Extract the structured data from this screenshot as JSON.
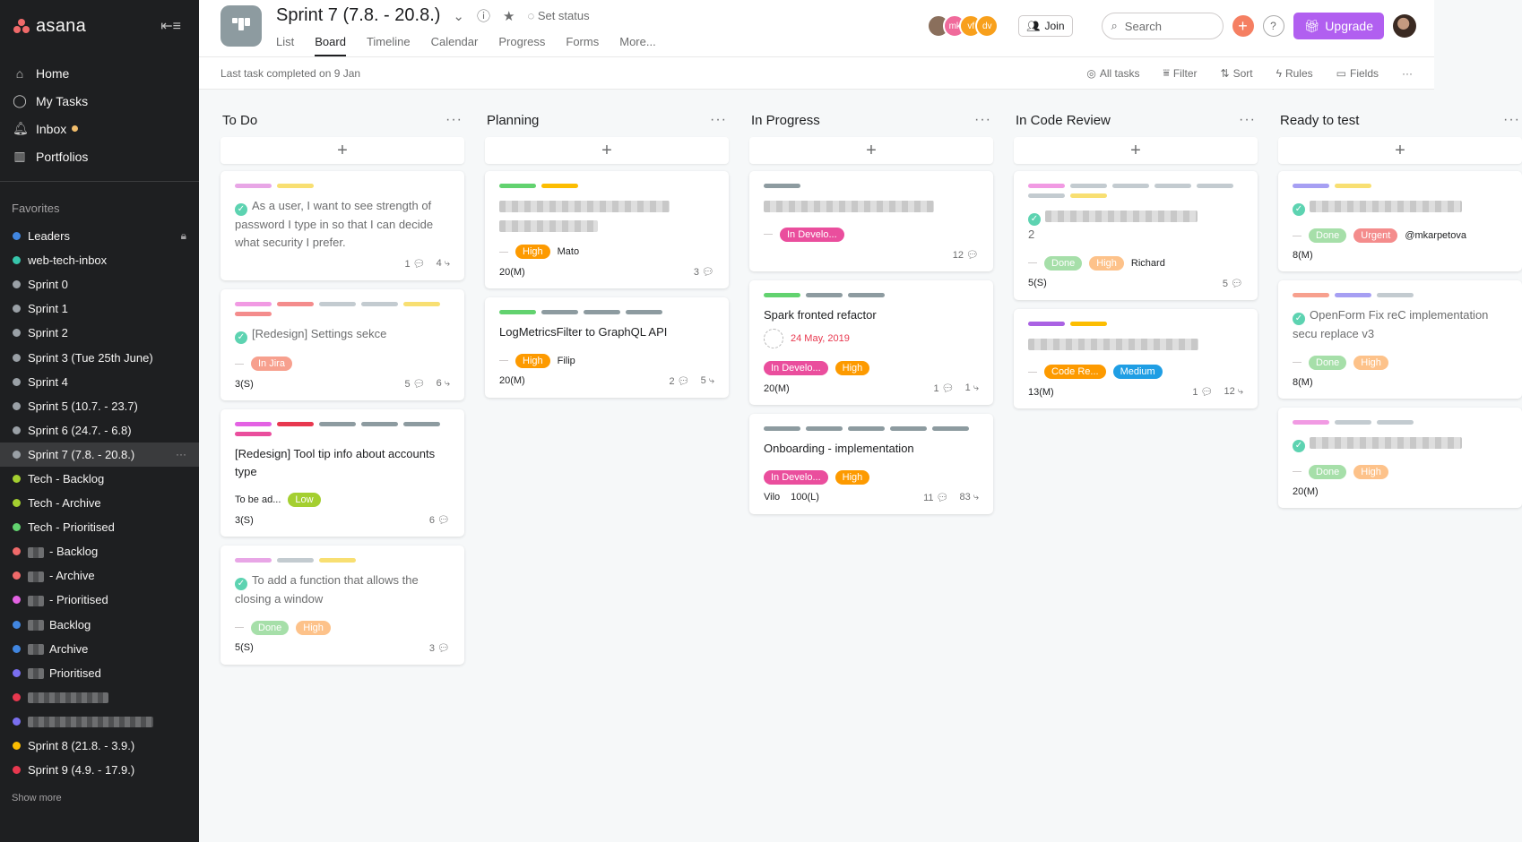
{
  "sidebar": {
    "logo": "asana",
    "nav": [
      {
        "label": "Home",
        "icon": "home-icon"
      },
      {
        "label": "My Tasks",
        "icon": "check-circle-icon"
      },
      {
        "label": "Inbox",
        "icon": "bell-icon"
      },
      {
        "label": "Portfolios",
        "icon": "bar-chart-icon"
      }
    ],
    "favorites_title": "Favorites",
    "favorites": [
      {
        "label": "Leaders",
        "color": "#4186e0",
        "locked": true
      },
      {
        "label": "web-tech-inbox",
        "color": "#37c5ab"
      },
      {
        "label": "Sprint 0",
        "color": "#9aa0a6"
      },
      {
        "label": "Sprint 1",
        "color": "#9aa0a6"
      },
      {
        "label": "Sprint 2",
        "color": "#9aa0a6"
      },
      {
        "label": "Sprint 3 (Tue 25th June)",
        "color": "#9aa0a6"
      },
      {
        "label": "Sprint 4",
        "color": "#9aa0a6"
      },
      {
        "label": "Sprint 5 (10.7. - 23.7)",
        "color": "#9aa0a6"
      },
      {
        "label": "Sprint 6 (24.7. - 6.8)",
        "color": "#9aa0a6"
      },
      {
        "label": "Sprint 7 (7.8. - 20.8.)",
        "color": "#9aa0a6",
        "active": true
      },
      {
        "label": "Tech - Backlog",
        "color": "#a4cf30"
      },
      {
        "label": "Tech - Archive",
        "color": "#a4cf30"
      },
      {
        "label": "Tech - Prioritised",
        "color": "#62d26f"
      },
      {
        "label": "- Backlog",
        "color": "#f06a6a",
        "blurred": true
      },
      {
        "label": "- Archive",
        "color": "#f06a6a",
        "blurred": true
      },
      {
        "label": "- Prioritised",
        "color": "#e362e3",
        "blurred": true
      },
      {
        "label": "Backlog",
        "color": "#4186e0",
        "blurred": true
      },
      {
        "label": "Archive",
        "color": "#4186e0",
        "blurred": true
      },
      {
        "label": "Prioritised",
        "color": "#7a6ff0",
        "blurred": true
      },
      {
        "label": "",
        "color": "#e8384f",
        "blurred_only": true
      },
      {
        "label": "",
        "color": "#7a6ff0",
        "blurred_only": true
      },
      {
        "label": "Sprint 8 (21.8. - 3.9.)",
        "color": "#fcbd01"
      },
      {
        "label": "Sprint 9 (4.9. - 17.9.)",
        "color": "#e8384f"
      }
    ],
    "show_more": "Show more"
  },
  "header": {
    "title": "Sprint 7 (7.8. - 20.8.)",
    "set_status": "Set status",
    "tabs": [
      "List",
      "Board",
      "Timeline",
      "Calendar",
      "Progress",
      "Forms",
      "More..."
    ],
    "active_tab": "Board",
    "avatars": [
      {
        "text": "",
        "color": "#8a6f5c"
      },
      {
        "text": "mk",
        "color": "#f06a9b"
      },
      {
        "text": "vf",
        "color": "#f8a01c"
      },
      {
        "text": "dv",
        "color": "#f8a01c"
      }
    ],
    "join": "Join",
    "search_placeholder": "Search",
    "upgrade": "Upgrade"
  },
  "subheader": {
    "status": "Last task completed on 9 Jan",
    "tools": [
      "All tasks",
      "Filter",
      "Sort",
      "Rules",
      "Fields"
    ]
  },
  "board": {
    "columns": [
      {
        "name": "To Do",
        "cards": [
          {
            "labels": [
              "#e8a6e6",
              "#f8df72"
            ],
            "done": true,
            "title": "As a user, I want to see strength of password I type in so that I can decide what security I prefer.",
            "meta": [
              "",
              "1",
              "4"
            ]
          },
          {
            "labels": [
              "#f19ae3",
              "#f48c8c",
              "#c3cbd0",
              "#c3cbd0",
              "#f8df72",
              "#f48c8c"
            ],
            "done": true,
            "title": "[Redesign] Settings sekce",
            "tags": [
              {
                "text": "In Jira",
                "bg": "#f7a08e",
                "fg": "#fff"
              }
            ],
            "meta": [
              "3(S)",
              "5",
              "6"
            ]
          },
          {
            "labels": [
              "#e362e3",
              "#e8384f",
              "#8d9ba0",
              "#8d9ba0",
              "#8d9ba0",
              "#ea4e9d"
            ],
            "done": false,
            "title": "[Redesign] Tool tip info about accounts type",
            "assignee": "To be ad...",
            "tags": [
              {
                "text": "Low",
                "bg": "#a4cf30",
                "fg": "#fff"
              }
            ],
            "meta": [
              "3(S)",
              "6",
              ""
            ]
          },
          {
            "labels": [
              "#e8a6e6",
              "#c3cbd0",
              "#f8df72"
            ],
            "done": true,
            "title": "To add a function that allows the closing a window",
            "tags": [
              {
                "text": "Done",
                "bg": "#a6dfa9",
                "fg": "#fff"
              },
              {
                "text": "High",
                "bg": "#fdc28a",
                "fg": "#fff"
              }
            ],
            "meta": [
              "5(S)",
              "3",
              ""
            ]
          }
        ]
      },
      {
        "name": "Planning",
        "cards": [
          {
            "labels": [
              "#62d26f",
              "#fcbd01"
            ],
            "blurred_title": true,
            "tags": [
              {
                "text": "High",
                "bg": "#fd9a00",
                "fg": "#fff"
              }
            ],
            "assignee": "Mato",
            "meta": [
              "20(M)",
              "3",
              ""
            ]
          },
          {
            "labels": [
              "#62d26f",
              "#8d9ba0",
              "#8d9ba0",
              "#8d9ba0"
            ],
            "title": "LogMetricsFilter to GraphQL API",
            "tags": [
              {
                "text": "High",
                "bg": "#fd9a00",
                "fg": "#fff"
              }
            ],
            "assignee": "Filip",
            "meta": [
              "20(M)",
              "2",
              "5"
            ]
          }
        ]
      },
      {
        "name": "In Progress",
        "cards": [
          {
            "labels": [
              "#8d9ba0"
            ],
            "blurred_title": true,
            "tags": [
              {
                "text": "In Develo...",
                "bg": "#ea4e9d",
                "fg": "#fff"
              }
            ],
            "meta": [
              "",
              "12",
              ""
            ]
          },
          {
            "labels": [
              "#62d26f",
              "#8d9ba0",
              "#8d9ba0"
            ],
            "title": "Spark fronted refactor",
            "due": "24 May, 2019",
            "tags": [
              {
                "text": "In Develo...",
                "bg": "#ea4e9d",
                "fg": "#fff"
              },
              {
                "text": "High",
                "bg": "#fd9a00",
                "fg": "#fff"
              }
            ],
            "meta": [
              "20(M)",
              "1",
              "1"
            ]
          },
          {
            "labels": [
              "#8d9ba0",
              "#8d9ba0",
              "#8d9ba0",
              "#8d9ba0",
              "#8d9ba0"
            ],
            "title": "Onboarding - implementation",
            "tags": [
              {
                "text": "In Develo...",
                "bg": "#ea4e9d",
                "fg": "#fff"
              },
              {
                "text": "High",
                "bg": "#fd9a00",
                "fg": "#fff"
              }
            ],
            "assignee": "Vilo",
            "meta": [
              "100(L)",
              "11",
              "83"
            ]
          }
        ]
      },
      {
        "name": "In Code Review",
        "cards": [
          {
            "labels": [
              "#f19ae3",
              "#c3cbd0",
              "#c3cbd0",
              "#c3cbd0",
              "#c3cbd0",
              "#c3cbd0",
              "#f8df72"
            ],
            "done": true,
            "blurred_title": true,
            "subtitle": "2",
            "tags": [
              {
                "text": "Done",
                "bg": "#a6dfa9",
                "fg": "#fff"
              },
              {
                "text": "High",
                "bg": "#fdc28a",
                "fg": "#fff"
              }
            ],
            "assignee": "Richard",
            "meta": [
              "5(S)",
              "5",
              ""
            ]
          },
          {
            "labels": [
              "#aa62e3",
              "#fcbd01"
            ],
            "blurred_title": true,
            "tags": [
              {
                "text": "Code Re...",
                "bg": "#fd9a00",
                "fg": "#fff"
              },
              {
                "text": "Medium",
                "bg": "#1f9ee4",
                "fg": "#fff"
              }
            ],
            "meta": [
              "13(M)",
              "1",
              "12"
            ]
          }
        ]
      },
      {
        "name": "Ready to test",
        "cards": [
          {
            "labels": [
              "#a69ff3",
              "#f8df72"
            ],
            "done": true,
            "blurred_title": true,
            "tags": [
              {
                "text": "Done",
                "bg": "#a6dfa9",
                "fg": "#fff"
              },
              {
                "text": "Urgent",
                "bg": "#f48c8c",
                "fg": "#fff"
              }
            ],
            "assignee": "@mkarpetova",
            "meta": [
              "8(M)",
              "",
              ""
            ]
          },
          {
            "labels": [
              "#f7a08e",
              "#a69ff3",
              "#c3cbd0"
            ],
            "done": true,
            "title": "OpenForm Fix reC implementation secu replace v3",
            "tags": [
              {
                "text": "Done",
                "bg": "#a6dfa9",
                "fg": "#fff"
              },
              {
                "text": "High",
                "bg": "#fdc28a",
                "fg": "#fff"
              }
            ],
            "meta": [
              "8(M)",
              "",
              ""
            ]
          },
          {
            "labels": [
              "#f19ae3",
              "#c3cbd0",
              "#c3cbd0"
            ],
            "done": true,
            "blurred_title": true,
            "tags": [
              {
                "text": "Done",
                "bg": "#a6dfa9",
                "fg": "#fff"
              },
              {
                "text": "High",
                "bg": "#fdc28a",
                "fg": "#fff"
              }
            ],
            "meta": [
              "20(M)",
              "",
              ""
            ]
          }
        ]
      }
    ]
  }
}
